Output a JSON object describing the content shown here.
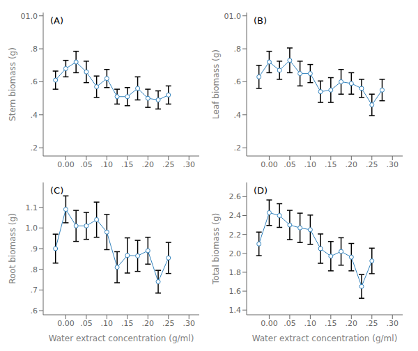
{
  "chart_data": [
    {
      "type": "line",
      "marker": "circle",
      "grid": false,
      "annotations": [
        "(A)"
      ],
      "ylabel": "Stem biomass (g)",
      "x": [
        -0.025,
        0.0,
        0.025,
        0.05,
        0.075,
        0.1,
        0.125,
        0.15,
        0.175,
        0.2,
        0.225,
        0.25
      ],
      "values": [
        0.61,
        0.68,
        0.72,
        0.66,
        0.57,
        0.62,
        0.51,
        0.51,
        0.56,
        0.5,
        0.49,
        0.52
      ],
      "errors": [
        0.055,
        0.05,
        0.065,
        0.065,
        0.065,
        0.055,
        0.045,
        0.055,
        0.07,
        0.055,
        0.055,
        0.055
      ],
      "xlim": [
        -0.055,
        0.325
      ],
      "xticks": [
        {
          "value": 0.0,
          "label": "0.00"
        },
        {
          "value": 0.05,
          "label": ".05"
        },
        {
          "value": 0.1,
          "label": ".10"
        },
        {
          "value": 0.15,
          "label": ".15"
        },
        {
          "value": 0.2,
          "label": ".20"
        },
        {
          "value": 0.25,
          "label": ".25"
        },
        {
          "value": 0.3,
          "label": ".30"
        }
      ],
      "ylim": [
        0.15,
        1.02
      ],
      "yticks": [
        {
          "value": 0.2,
          "label": ".2"
        },
        {
          "value": 0.4,
          "label": ".4"
        },
        {
          "value": 0.6,
          "label": ".6"
        },
        {
          "value": 0.8,
          "label": ".8"
        },
        {
          "value": 1.0,
          "label": "01.0"
        }
      ]
    },
    {
      "type": "line",
      "marker": "circle",
      "grid": false,
      "annotations": [
        "(B)"
      ],
      "ylabel": "Leaf biomass (g)",
      "x": [
        -0.025,
        0.0,
        0.025,
        0.05,
        0.075,
        0.1,
        0.125,
        0.15,
        0.175,
        0.2,
        0.225,
        0.25,
        0.275
      ],
      "values": [
        0.63,
        0.72,
        0.67,
        0.73,
        0.65,
        0.65,
        0.54,
        0.55,
        0.6,
        0.59,
        0.56,
        0.46,
        0.55
      ],
      "errors": [
        0.07,
        0.065,
        0.055,
        0.075,
        0.075,
        0.055,
        0.065,
        0.075,
        0.075,
        0.065,
        0.055,
        0.065,
        0.065
      ],
      "xlim": [
        -0.055,
        0.325
      ],
      "xticks": [
        {
          "value": 0.0,
          "label": "0.00"
        },
        {
          "value": 0.05,
          "label": ".05"
        },
        {
          "value": 0.1,
          "label": ".10"
        },
        {
          "value": 0.15,
          "label": ".15"
        },
        {
          "value": 0.2,
          "label": ".20"
        },
        {
          "value": 0.25,
          "label": ".25"
        },
        {
          "value": 0.3,
          "label": ".30"
        }
      ],
      "ylim": [
        0.15,
        1.02
      ],
      "yticks": [
        {
          "value": 0.2,
          "label": ".2"
        },
        {
          "value": 0.4,
          "label": ".4"
        },
        {
          "value": 0.6,
          "label": ".6"
        },
        {
          "value": 0.8,
          "label": ".8"
        },
        {
          "value": 1.0,
          "label": "01.0"
        }
      ]
    },
    {
      "type": "line",
      "marker": "circle",
      "grid": false,
      "annotations": [
        "(C)"
      ],
      "xlabel": "Water extract concentration (g/ml)",
      "ylabel": "Root biomass (g)",
      "x": [
        -0.025,
        0.0,
        0.025,
        0.05,
        0.075,
        0.1,
        0.125,
        0.15,
        0.175,
        0.2,
        0.225,
        0.25
      ],
      "values": [
        0.9,
        1.09,
        1.01,
        1.01,
        1.04,
        0.98,
        0.81,
        0.867,
        0.865,
        0.89,
        0.74,
        0.855
      ],
      "errors": [
        0.07,
        0.065,
        0.075,
        0.065,
        0.085,
        0.085,
        0.075,
        0.085,
        0.075,
        0.065,
        0.055,
        0.075
      ],
      "xlim": [
        -0.055,
        0.325
      ],
      "xticks": [
        {
          "value": 0.0,
          "label": "0.00"
        },
        {
          "value": 0.05,
          "label": ".05"
        },
        {
          "value": 0.1,
          "label": ".10"
        },
        {
          "value": 0.15,
          "label": ".15"
        },
        {
          "value": 0.2,
          "label": ".20"
        },
        {
          "value": 0.25,
          "label": ".25"
        },
        {
          "value": 0.3,
          "label": ".30"
        }
      ],
      "ylim": [
        0.58,
        1.22
      ],
      "yticks": [
        {
          "value": 0.6,
          "label": ".6"
        },
        {
          "value": 0.7,
          "label": ".7"
        },
        {
          "value": 0.8,
          "label": ".8"
        },
        {
          "value": 0.9,
          "label": ".9"
        },
        {
          "value": 1.0,
          "label": "1.0"
        },
        1.1
      ]
    },
    {
      "type": "line",
      "marker": "circle",
      "grid": false,
      "annotations": [
        "(D)"
      ],
      "xlabel": "Water extract concentration (g/ml)",
      "ylabel": "Total biomass (g)",
      "x": [
        -0.025,
        0.0,
        0.025,
        0.05,
        0.075,
        0.1,
        0.125,
        0.15,
        0.175,
        0.2,
        0.225,
        0.25
      ],
      "values": [
        2.1,
        2.43,
        2.4,
        2.3,
        2.27,
        2.25,
        2.05,
        1.97,
        2.02,
        1.96,
        1.65,
        1.92
      ],
      "errors": [
        0.125,
        0.135,
        0.125,
        0.155,
        0.155,
        0.155,
        0.155,
        0.155,
        0.145,
        0.145,
        0.125,
        0.135
      ],
      "xlim": [
        -0.055,
        0.325
      ],
      "xticks": [
        {
          "value": 0.0,
          "label": "0.00"
        },
        {
          "value": 0.05,
          "label": ".05"
        },
        {
          "value": 0.1,
          "label": ".10"
        },
        {
          "value": 0.15,
          "label": ".15"
        },
        {
          "value": 0.2,
          "label": ".20"
        },
        {
          "value": 0.25,
          "label": ".25"
        },
        {
          "value": 0.3,
          "label": ".30"
        }
      ],
      "ylim": [
        1.35,
        2.75
      ],
      "yticks": [
        1.4,
        1.6,
        1.8,
        {
          "value": 2.0,
          "label": "2.0"
        },
        2.2,
        2.4,
        2.6
      ]
    }
  ]
}
